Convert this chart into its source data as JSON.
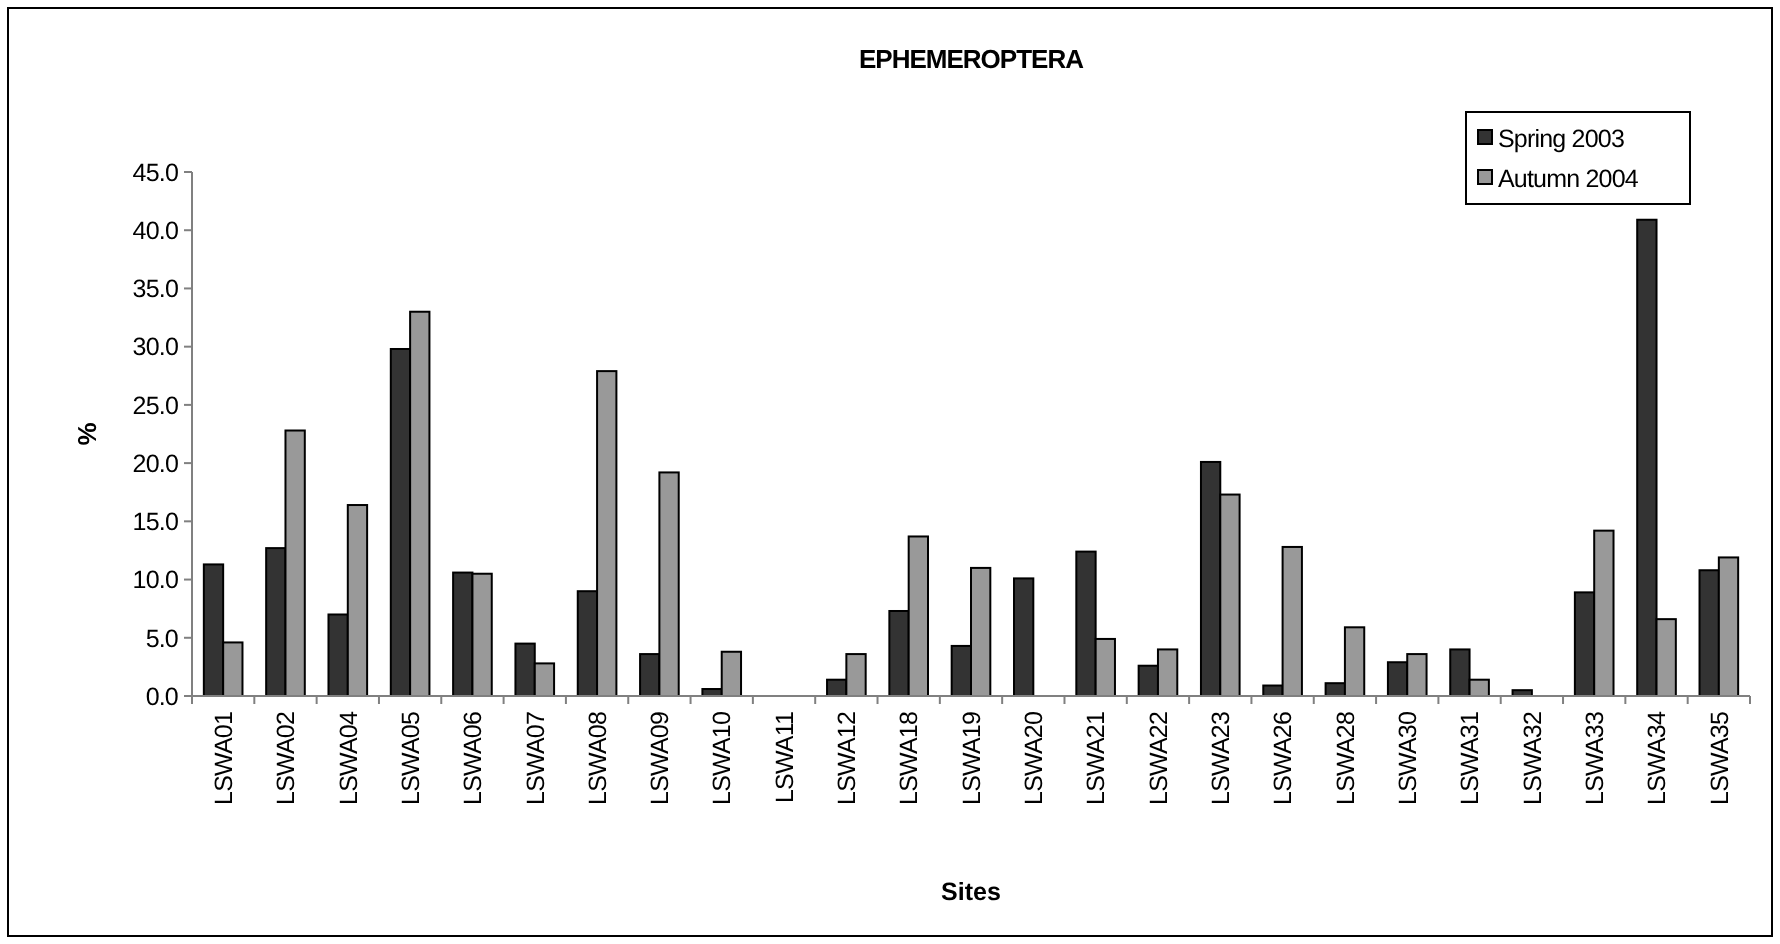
{
  "chart_data": {
    "type": "bar",
    "title": "EPHEMEROPTERA",
    "xlabel": "Sites",
    "ylabel": "%",
    "categories": [
      "LSWA01",
      "LSWA02",
      "LSWA04",
      "LSWA05",
      "LSWA06",
      "LSWA07",
      "LSWA08",
      "LSWA09",
      "LSWA10",
      "LSWA11",
      "LSWA12",
      "LSWA18",
      "LSWA19",
      "LSWA20",
      "LSWA21",
      "LSWA22",
      "LSWA23",
      "LSWA26",
      "LSWA28",
      "LSWA30",
      "LSWA31",
      "LSWA32",
      "LSWA33",
      "LSWA34",
      "LSWA35"
    ],
    "series": [
      {
        "name": "Spring 2003",
        "color": "#333333",
        "values": [
          11.3,
          12.7,
          7.0,
          29.8,
          10.6,
          4.5,
          9.0,
          3.6,
          0.6,
          0,
          1.4,
          7.3,
          4.3,
          10.1,
          12.4,
          2.6,
          20.1,
          0.9,
          1.1,
          2.9,
          4.0,
          0.5,
          8.9,
          40.9,
          10.8
        ]
      },
      {
        "name": "Autumn 2004",
        "color": "#999999",
        "values": [
          4.6,
          22.8,
          16.4,
          33.0,
          10.5,
          2.8,
          27.9,
          19.2,
          3.8,
          0,
          3.6,
          13.7,
          11.0,
          0,
          4.9,
          4.0,
          17.3,
          12.8,
          5.9,
          3.6,
          1.4,
          0,
          14.2,
          6.6,
          11.9
        ]
      }
    ],
    "ylim": [
      0,
      45
    ],
    "yticks": [
      {
        "value": 0,
        "label": "0.0"
      },
      {
        "value": 5,
        "label": "5.0"
      },
      {
        "value": 10,
        "label": "10.0"
      },
      {
        "value": 15,
        "label": "15.0"
      },
      {
        "value": 20,
        "label": "20.0"
      },
      {
        "value": 25,
        "label": "25.0"
      },
      {
        "value": 30,
        "label": "30.0"
      },
      {
        "value": 35,
        "label": "35.0"
      },
      {
        "value": 40,
        "label": "40.0"
      },
      {
        "value": 45,
        "label": "45.0"
      }
    ],
    "grid": false,
    "legend": "top right"
  }
}
